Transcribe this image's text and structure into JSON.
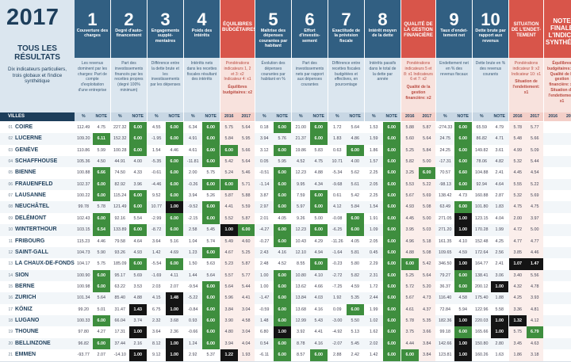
{
  "year": "2017",
  "summary_title": "TOUS LES RÉSULTATS",
  "summary_desc": "Dix indicateurs particuliers, trois globaux et l'indice synthétique",
  "city_header": "VILLES",
  "headers": [
    {
      "num": "1",
      "title": "Couverture des charges",
      "sub": "Les revenus dominent par les charges: Part de compte d'exploitation d'une entreprise",
      "color": "blue",
      "cols": [
        "%",
        "NOTE"
      ]
    },
    {
      "num": "2",
      "title": "Degré d'auto-financement",
      "sub": "Part des investissements financés par les recettes propres (degré 100% minimum)",
      "color": "blue",
      "cols": [
        "%",
        "NOTE"
      ]
    },
    {
      "num": "3",
      "title": "Engagements supplé-mentaires",
      "sub": "Différence entre la dette brute et les investissements par les dépenses",
      "color": "blue",
      "cols": [
        "%",
        "NOTE"
      ]
    },
    {
      "num": "4",
      "title": "Poids des intérêts",
      "sub": "Intérêts nets dans les recettes fiscales résultant des intérêts",
      "color": "blue",
      "cols": [
        "%",
        "NOTE"
      ]
    },
    {
      "num": "",
      "title": "ÉQUILIBRES BUDGÉTAIRES",
      "sub": "Pondérations indicateurs 1, 2 et 3: x2 Indicateur 4: x1",
      "strong": "Équilibres budgétaires: x2",
      "color": "red",
      "cols": [
        "2016",
        "2017"
      ]
    },
    {
      "num": "5",
      "title": "Maîtrise des dépenses courantes par habitant",
      "sub": "Évolution des dépenses courantes par habitant en %",
      "color": "blue",
      "cols": [
        "%",
        "NOTE"
      ]
    },
    {
      "num": "6",
      "title": "Effort d'investis-sement",
      "sub": "Part des investissements nets par rapport aux dépenses courantes",
      "color": "blue",
      "cols": [
        "%",
        "NOTE"
      ]
    },
    {
      "num": "7",
      "title": "Exactitude de la prévision fiscale",
      "sub": "Différence entre recettes fiscales budgétées et effectives, en pourcentage",
      "color": "blue",
      "cols": [
        "%",
        "NOTE"
      ]
    },
    {
      "num": "8",
      "title": "Intérêt moyen de la dette",
      "sub": "Intérêts passifs dans le total de la dette par année",
      "color": "blue",
      "cols": [
        "%",
        "NOTE"
      ]
    },
    {
      "num": "",
      "title": "QUALITÉ DE LA GESTION FINANCIÈRE",
      "sub": "Pondérations indicateurs 5 et 8: x1 Indicateurs 6 et 7: x2",
      "strong": "Qualité de la gestion financière: x2",
      "color": "red",
      "cols": [
        "2016",
        "2017"
      ]
    },
    {
      "num": "9",
      "title": "Taux d'endet-tement net",
      "sub": "Endettement net en % des revenus fiscaux",
      "color": "blue",
      "cols": [
        "%",
        "NOTE"
      ]
    },
    {
      "num": "10",
      "title": "Dette brute par rapport aux revenus",
      "sub": "Dette brute en % des revenus courants",
      "color": "blue",
      "cols": [
        "%",
        "NOTE"
      ]
    },
    {
      "num": "",
      "title": "SITUATION DE L'ENDET-TEMENT",
      "sub": "Pondérations indicateur 9: x2 Indicateur 10: x1",
      "strong": "Situation de l'endettement: x1",
      "color": "red",
      "cols": [
        "2016",
        "2017"
      ]
    },
    {
      "num": "",
      "title": "NOTE FINALE L'INDICE SYNTHÉTIQUE",
      "sub": "Équilibres budgétaires: x2 Qualité de la gestion financière: x2 Situation de l'endettement: x1",
      "color": "red",
      "final": true,
      "cols": [
        "2016",
        "2017"
      ]
    }
  ],
  "rows": [
    {
      "rank": "01",
      "city": "COIRE",
      "v": [
        "112.49",
        "4.75",
        "227.32",
        "6.00",
        "4.55",
        "6.00",
        "6.34",
        "6.00",
        "5.75",
        "5.64",
        "0.18",
        "6.00",
        "21.00",
        "6.00",
        "1.72",
        "5.64",
        "1.53",
        "6.00",
        "5.88",
        "5.87",
        "-274.33",
        "6.00",
        "65.59",
        "4.79",
        "5.78",
        "5.77"
      ]
    },
    {
      "rank": "02",
      "city": "LUCERNE",
      "v": [
        "109.20",
        "6.11",
        "152.32",
        "6.00",
        "-1.95",
        "6.00",
        "4.91",
        "6.00",
        "5.84",
        "5.95",
        "3.94",
        "5.76",
        "21.37",
        "6.00",
        "1.83",
        "4.86",
        "1.59",
        "6.00",
        "5.60",
        "5.64",
        "24.75",
        "6.00",
        "86.82",
        "4.71",
        "5.48",
        "5.66"
      ]
    },
    {
      "rank": "03",
      "city": "GENÈVE",
      "v": [
        "110.86",
        "5.99",
        "100.28",
        "6.00",
        "1.54",
        "4.46",
        "4.61",
        "6.00",
        "6.00",
        "5.66",
        "3.12",
        "6.00",
        "19.86",
        "5.83",
        "0.63",
        "6.00",
        "1.86",
        "6.00",
        "5.25",
        "5.84",
        "24.25",
        "6.00",
        "149.82",
        "3.61",
        "4.99",
        "5.09"
      ]
    },
    {
      "rank": "04",
      "city": "SCHAFFHOUSE",
      "v": [
        "105.36",
        "4.50",
        "44.91",
        "4.00",
        "-5.35",
        "6.00",
        "-11.81",
        "6.00",
        "5.42",
        "5.64",
        "0.05",
        "5.95",
        "4.52",
        "4.75",
        "10.71",
        "4.00",
        "1.57",
        "6.00",
        "5.82",
        "5.00",
        "-17.31",
        "6.00",
        "78.06",
        "4.82",
        "5.32",
        "5.44"
      ]
    },
    {
      "rank": "05",
      "city": "BIENNE",
      "v": [
        "100.88",
        "6.66",
        "74.50",
        "4.33",
        "-0.61",
        "6.00",
        "2.00",
        "5.75",
        "5.24",
        "5.46",
        "-0.51",
        "6.00",
        "12.23",
        "4.88",
        "-5.34",
        "5.62",
        "2.25",
        "6.00",
        "3.25",
        "6.00",
        "70.57",
        "6.60",
        "104.88",
        "2.41",
        "4.45",
        "4.54"
      ]
    },
    {
      "rank": "06",
      "city": "FRAUENFELD",
      "v": [
        "102.37",
        "6.00",
        "82.92",
        "3.96",
        "-4.46",
        "6.00",
        "-0.26",
        "6.00",
        "6.00",
        "5.71",
        "-1.14",
        "6.00",
        "9.95",
        "4.34",
        "-9.68",
        "5.61",
        "2.05",
        "6.00",
        "5.53",
        "5.22",
        "-98.13",
        "6.00",
        "92.94",
        "4.64",
        "5.55",
        "5.22"
      ]
    },
    {
      "rank": "07",
      "city": "LAUSANNE",
      "v": [
        "100.22",
        "6.00",
        "115.24",
        "6.00",
        "9.52",
        "6.00",
        "3.94",
        "5.26",
        "5.87",
        "5.88",
        "3.87",
        "6.00",
        "7.59",
        "6.00",
        "0.61",
        "5.42",
        "2.25",
        "6.00",
        "5.67",
        "5.69",
        "138.42",
        "4.73",
        "160.88",
        "2.87",
        "5.32",
        "5.69"
      ]
    },
    {
      "rank": "08",
      "city": "NEUCHÂTEL",
      "v": [
        "99.78",
        "5.78",
        "121.49",
        "6.00",
        "10.77",
        "1.00",
        "-9.52",
        "6.00",
        "4.41",
        "5.59",
        "2.97",
        "6.00",
        "5.97",
        "6.00",
        "4.12",
        "5.84",
        "1.54",
        "6.00",
        "4.93",
        "5.08",
        "63.49",
        "6.00",
        "101.80",
        "1.83",
        "4.75",
        "4.75"
      ]
    },
    {
      "rank": "09",
      "city": "DELÉMONT",
      "v": [
        "102.43",
        "6.00",
        "92.16",
        "5.54",
        "-2.99",
        "6.00",
        "-2.15",
        "6.00",
        "5.52",
        "5.87",
        "2.01",
        "4.05",
        "9.26",
        "5.00",
        "-0.08",
        "6.00",
        "1.91",
        "6.00",
        "4.45",
        "5.00",
        "271.05",
        "1.00",
        "123.15",
        "4.04",
        "2.00",
        "3.97"
      ]
    },
    {
      "rank": "10",
      "city": "WINTERTHOUR",
      "v": [
        "103.15",
        "6.54",
        "133.89",
        "6.00",
        "-8.72",
        "6.00",
        "2.58",
        "5.45",
        "1.00",
        "6.00",
        "-4.27",
        "6.00",
        "12.23",
        "6.00",
        "-6.25",
        "6.00",
        "1.09",
        "6.00",
        "3.95",
        "5.03",
        "271.20",
        "1.00",
        "170.28",
        "1.99",
        "4.72",
        "5.00"
      ]
    },
    {
      "rank": "11",
      "city": "FRIBOURG",
      "v": [
        "115.23",
        "4.46",
        "79.58",
        "4.64",
        "3.64",
        "5.16",
        "1.04",
        "5.74",
        "5.49",
        "4.60",
        "-0.27",
        "6.00",
        "10.43",
        "4.29",
        "-11.26",
        "4.05",
        "2.05",
        "6.00",
        "4.96",
        "5.18",
        "161.35",
        "4.10",
        "152.48",
        "4.25",
        "4.77",
        "4.77"
      ]
    },
    {
      "rank": "12",
      "city": "SAINT-GALL",
      "v": [
        "104.73",
        "5.90",
        "93.26",
        "4.93",
        "1.42",
        "4.69",
        "1.23",
        "6.00",
        "4.67",
        "5.25",
        "2.43",
        "4.16",
        "12.10",
        "4.94",
        "-1.64",
        "5.81",
        "0.45",
        "6.00",
        "4.88",
        "5.08",
        "109.65",
        "4.59",
        "172.64",
        "2.56",
        "3.85",
        "4.46"
      ]
    },
    {
      "rank": "13",
      "city": "LA CHAUX-DE-FONDS",
      "v": [
        "104.17",
        "5.75",
        "185.09",
        "6.00",
        "-5.54",
        "6.00",
        "1.50",
        "5.63",
        "5.23",
        "5.87",
        "2.48",
        "4.52",
        "8.55",
        "6.00",
        "-0.23",
        "5.80",
        "2.29",
        "6.00",
        "6.00",
        "5.42",
        "346.50",
        "1.00",
        "164.77",
        "2.41",
        "1.07",
        "1.47"
      ]
    },
    {
      "rank": "14",
      "city": "SION",
      "v": [
        "100.90",
        "6.00",
        "95.17",
        "5.69",
        "-1.69",
        "4.11",
        "1.44",
        "5.64",
        "5.57",
        "5.77",
        "1.00",
        "6.00",
        "10.80",
        "4.10",
        "-2.72",
        "5.82",
        "2.31",
        "6.00",
        "5.25",
        "5.64",
        "79.27",
        "6.00",
        "138.41",
        "3.06",
        "3.40",
        "5.56"
      ]
    },
    {
      "rank": "15",
      "city": "BERNE",
      "v": [
        "100.98",
        "6.00",
        "63.22",
        "3.53",
        "2.03",
        "2.07",
        "-9.54",
        "6.00",
        "5.64",
        "5.44",
        "1.00",
        "6.00",
        "13.62",
        "4.66",
        "-7.25",
        "4.59",
        "1.72",
        "6.00",
        "5.72",
        "5.20",
        "36.37",
        "6.00",
        "200.12",
        "1.00",
        "4.32",
        "4.78"
      ]
    },
    {
      "rank": "16",
      "city": "ZURICH",
      "v": [
        "101.34",
        "5.64",
        "85.40",
        "4.88",
        "4.15",
        "1.48",
        "-5.22",
        "6.00",
        "5.96",
        "4.41",
        "-1.47",
        "6.00",
        "13.84",
        "4.03",
        "1.92",
        "5.35",
        "2.44",
        "6.00",
        "5.67",
        "4.73",
        "116.40",
        "4.58",
        "175.40",
        "1.88",
        "4.25",
        "3.93"
      ]
    },
    {
      "rank": "17",
      "city": "KÖNIZ",
      "v": [
        "99.20",
        "5.01",
        "31.47",
        "1.43",
        "6.75",
        "1.00",
        "-0.84",
        "6.00",
        "3.84",
        "3.04",
        "-0.59",
        "6.00",
        "13.68",
        "4.16",
        "0.09",
        "6.00",
        "1.99",
        "6.00",
        "4.61",
        "4.37",
        "72.84",
        "5.94",
        "122.96",
        "5.58",
        "3.36",
        "4.81"
      ]
    },
    {
      "rank": "18",
      "city": "LUGANO",
      "v": [
        "100.33",
        "6.00",
        "66.04",
        "3.74",
        "2.32",
        "3.68",
        "0.93",
        "6.00",
        "3.90",
        "4.58",
        "1.48",
        "6.00",
        "12.99",
        "5.43",
        "-3.00",
        "5.50",
        "1.02",
        "6.00",
        "5.78",
        "5.35",
        "182.36",
        "1.00",
        "220.03",
        "1.00",
        "1.32",
        "4.12"
      ]
    },
    {
      "rank": "19",
      "city": "THOUNE",
      "v": [
        "97.80",
        "4.27",
        "17.31",
        "1.00",
        "3.64",
        "2.36",
        "-0.66",
        "6.00",
        "4.80",
        "3.04",
        "6.80",
        "1.00",
        "3.92",
        "4.41",
        "-4.92",
        "5.13",
        "1.62",
        "6.00",
        "3.75",
        "3.66",
        "99.18",
        "6.00",
        "165.66",
        "1.00",
        "5.75",
        "6.79"
      ]
    },
    {
      "rank": "20",
      "city": "BELLINZONE",
      "v": [
        "96.82",
        "6.00",
        "37.44",
        "2.16",
        "8.12",
        "1.00",
        "1.24",
        "6.00",
        "3.94",
        "4.04",
        "0.54",
        "6.00",
        "8.78",
        "4.16",
        "-2.07",
        "5.45",
        "2.02",
        "6.00",
        "4.44",
        "3.84",
        "142.66",
        "1.00",
        "150.80",
        "2.80",
        "3.45",
        "4.63"
      ]
    },
    {
      "rank": "21",
      "city": "EMMEN",
      "v": [
        "-93.77",
        "2.07",
        "-14.10",
        "1.00",
        "9.12",
        "1.00",
        "2.92",
        "5.37",
        "1.22",
        "1.93",
        "-6.11",
        "6.00",
        "8.57",
        "6.00",
        "2.88",
        "2.42",
        "1.42",
        "6.00",
        "6.00",
        "3.84",
        "123.81",
        "1.00",
        "160.26",
        "1.63",
        "1.86",
        "3.18"
      ]
    }
  ]
}
